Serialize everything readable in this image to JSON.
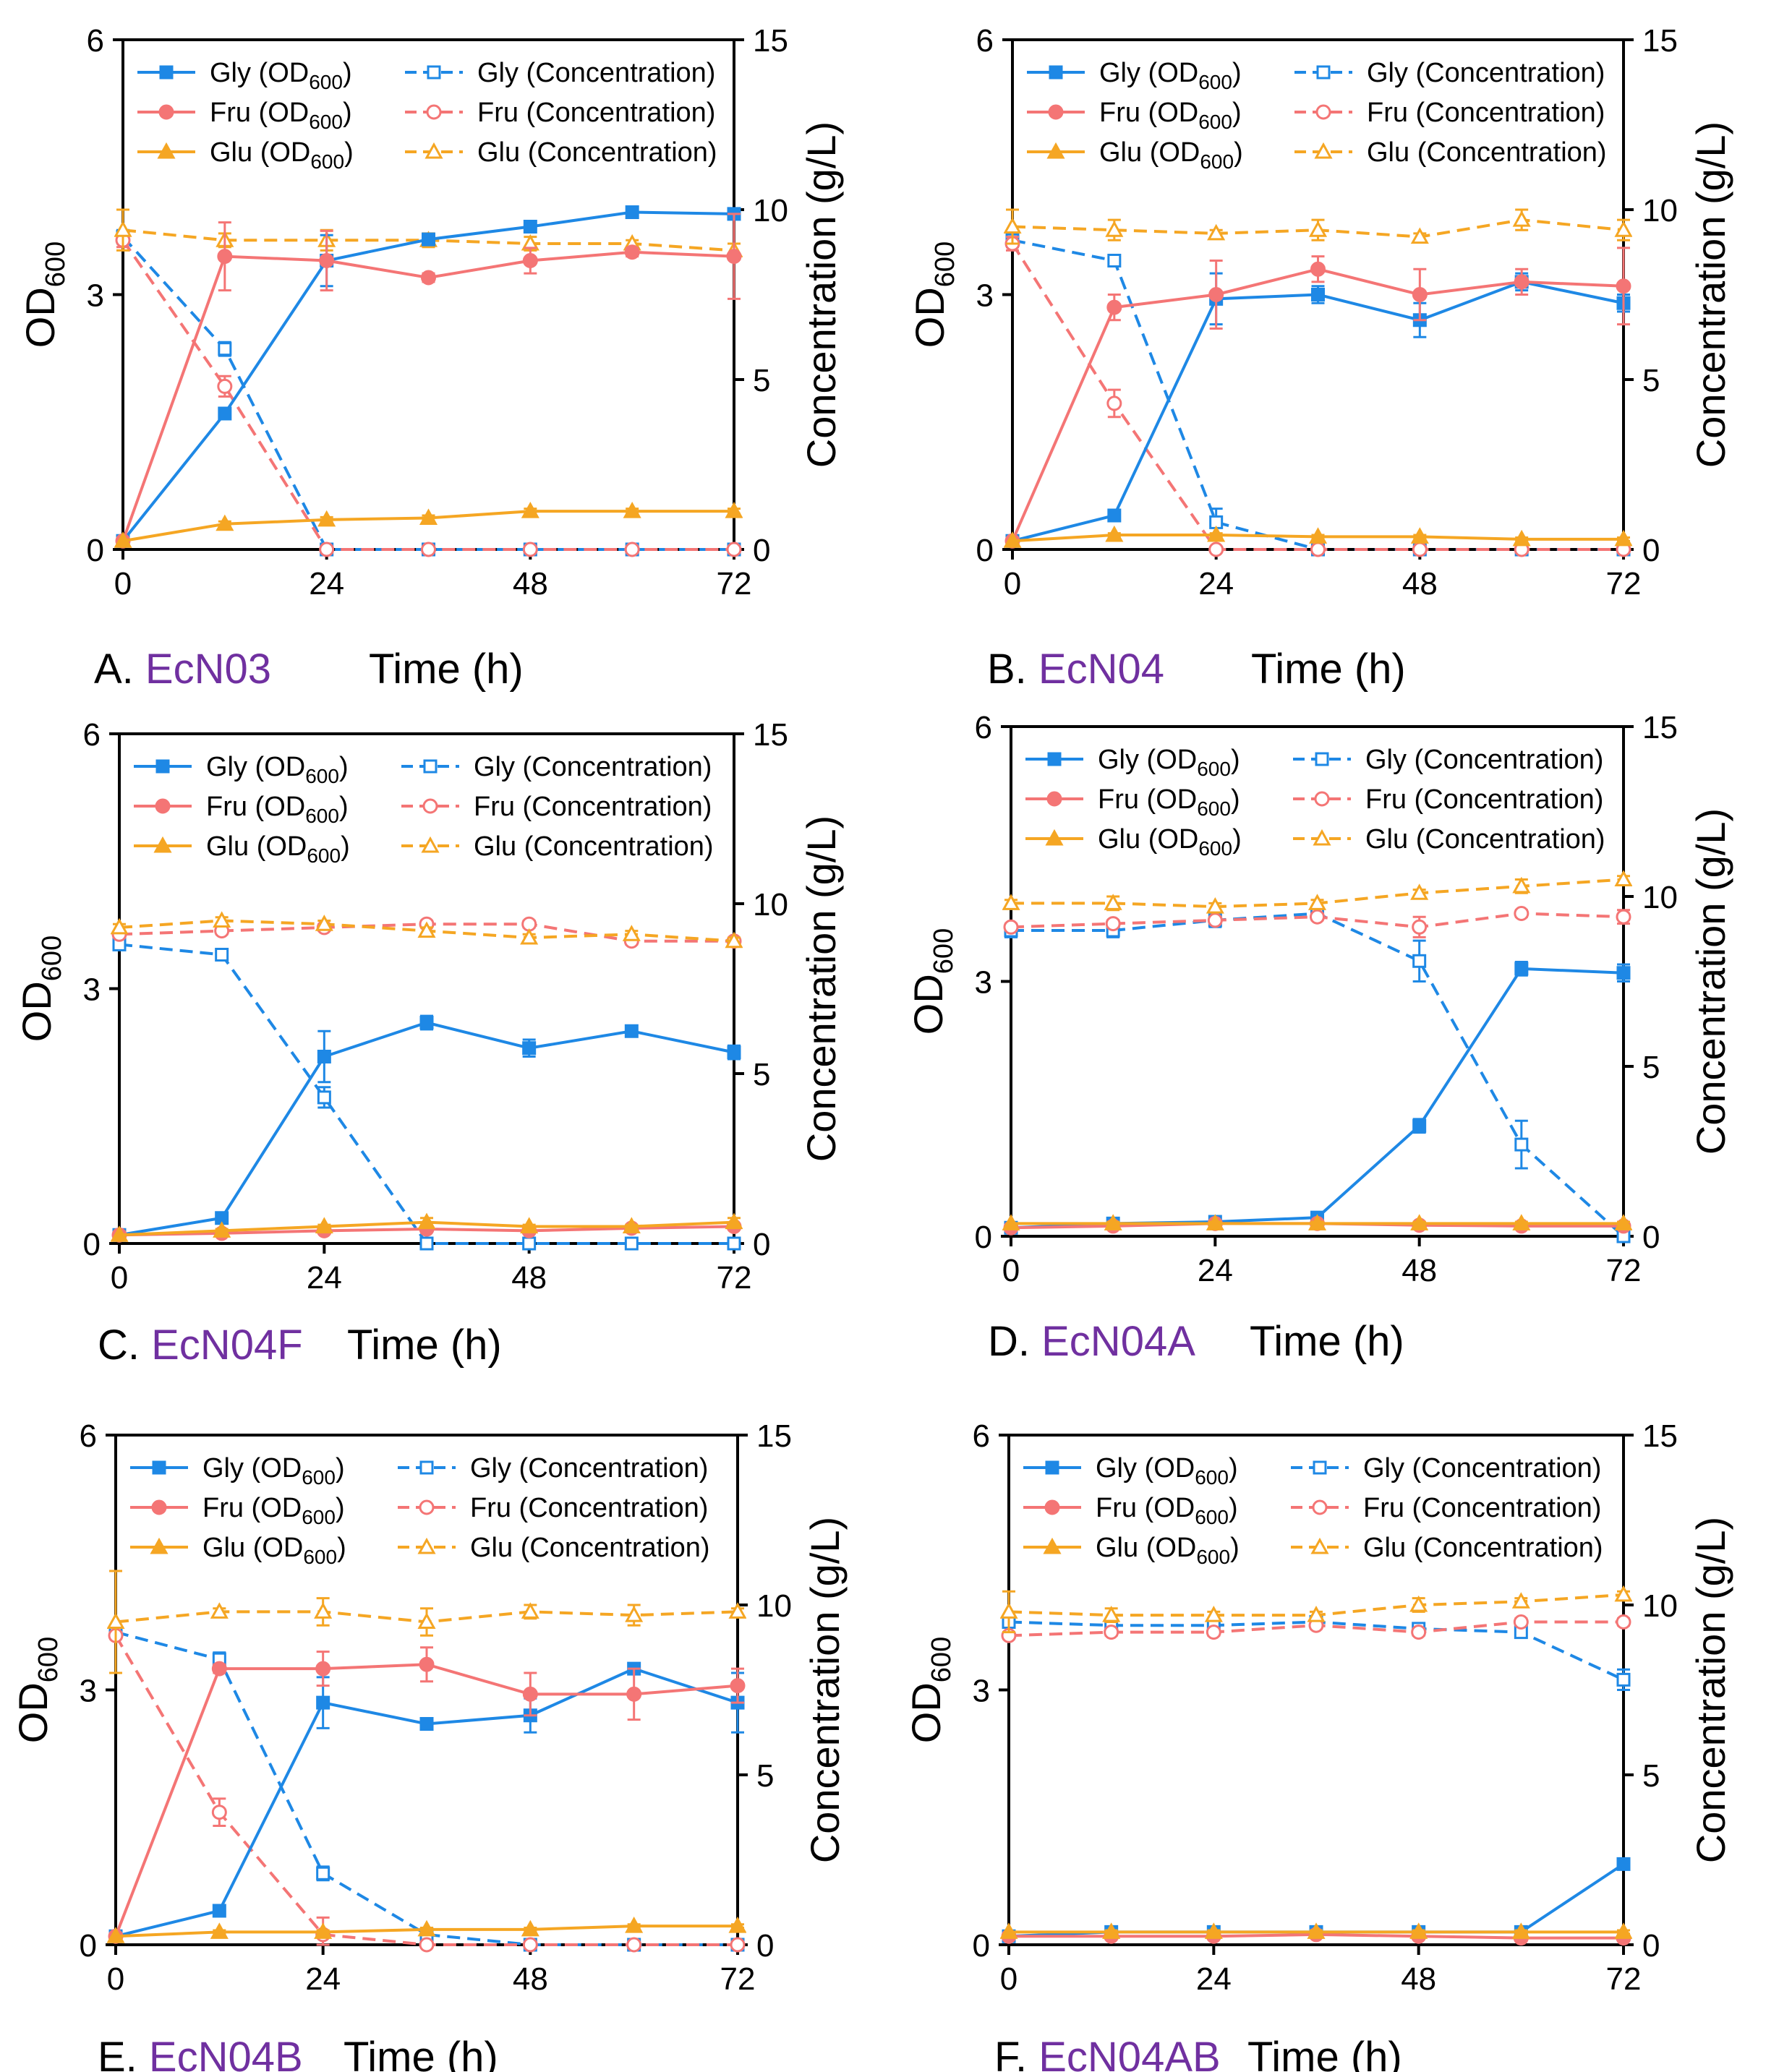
{
  "colors": {
    "gly": "#1E88E5",
    "fru": "#F47575",
    "glu": "#F5A623",
    "strain": "#7030A0",
    "axis": "#000000"
  },
  "legend_labels": {
    "gly_od": "Gly (OD",
    "fru_od": "Fru (OD",
    "glu_od": "Glu (OD",
    "od_sub": "600",
    "od_close": ")",
    "gly_conc": "Gly (Concentration)",
    "fru_conc": "Fru (Concentration)",
    "glu_conc": "Glu (Concentration)"
  },
  "chart_data": [
    {
      "type": "line",
      "panel_label": "A.",
      "strain": "EcN03",
      "xlabel": "Time (h)",
      "ylabel_left": "OD",
      "ylabel_left_sub": "600",
      "ylabel_right": "Concentration (g/L)",
      "x": [
        0,
        12,
        24,
        36,
        48,
        60,
        72
      ],
      "xlim": [
        0,
        72
      ],
      "xticks": [
        0,
        24,
        48,
        72
      ],
      "ylim_left": [
        0,
        6
      ],
      "yticks_left": [
        0,
        3,
        6
      ],
      "ylim_right": [
        0,
        15
      ],
      "yticks_right": [
        0,
        5,
        10,
        15
      ],
      "od_series": [
        {
          "name": "Gly (OD600)",
          "key": "gly",
          "values": [
            0.1,
            1.6,
            3.4,
            3.65,
            3.8,
            3.97,
            3.95
          ],
          "errors": [
            0,
            0.05,
            0.3,
            0.05,
            0.05,
            0.05,
            0.05
          ]
        },
        {
          "name": "Fru (OD600)",
          "key": "fru",
          "values": [
            0.1,
            3.45,
            3.4,
            3.2,
            3.4,
            3.5,
            3.45
          ],
          "errors": [
            0,
            0.4,
            0.35,
            0.05,
            0.15,
            0.05,
            0.5
          ]
        },
        {
          "name": "Glu (OD600)",
          "key": "glu",
          "values": [
            0.1,
            0.3,
            0.35,
            0.37,
            0.45,
            0.45,
            0.45
          ],
          "errors": [
            0,
            0.03,
            0.03,
            0.03,
            0.03,
            0.03,
            0.03
          ]
        }
      ],
      "conc_series": [
        {
          "name": "Gly (Concentration)",
          "key": "gly",
          "values": [
            9.2,
            5.9,
            0,
            0,
            0,
            0,
            0
          ],
          "errors": [
            0.2,
            0.2,
            0,
            0,
            0,
            0,
            0
          ]
        },
        {
          "name": "Fru (Concentration)",
          "key": "fru",
          "values": [
            9.1,
            4.8,
            0,
            0,
            0,
            0,
            0
          ],
          "errors": [
            0.2,
            0.3,
            0,
            0,
            0,
            0,
            0
          ]
        },
        {
          "name": "Glu (Concentration)",
          "key": "glu",
          "values": [
            9.4,
            9.1,
            9.1,
            9.1,
            9.0,
            9.0,
            8.8
          ],
          "errors": [
            0.6,
            0.2,
            0.3,
            0.2,
            0.2,
            0.1,
            0.2
          ]
        }
      ]
    },
    {
      "type": "line",
      "panel_label": "B.",
      "strain": "EcN04",
      "xlabel": "Time (h)",
      "ylabel_left": "OD",
      "ylabel_left_sub": "600",
      "ylabel_right": "Concentration (g/L)",
      "x": [
        0,
        12,
        24,
        36,
        48,
        60,
        72
      ],
      "xlim": [
        0,
        72
      ],
      "xticks": [
        0,
        24,
        48,
        72
      ],
      "ylim_left": [
        0,
        6
      ],
      "yticks_left": [
        0,
        3,
        6
      ],
      "ylim_right": [
        0,
        15
      ],
      "yticks_right": [
        0,
        5,
        10,
        15
      ],
      "od_series": [
        {
          "name": "Gly (OD600)",
          "key": "gly",
          "values": [
            0.1,
            0.4,
            2.95,
            3.0,
            2.7,
            3.15,
            2.9
          ],
          "errors": [
            0,
            0.05,
            0.3,
            0.1,
            0.2,
            0.1,
            0.1
          ]
        },
        {
          "name": "Fru (OD600)",
          "key": "fru",
          "values": [
            0.1,
            2.85,
            3.0,
            3.3,
            3.0,
            3.15,
            3.1
          ],
          "errors": [
            0,
            0.15,
            0.4,
            0.15,
            0.3,
            0.15,
            0.45
          ]
        },
        {
          "name": "Glu (OD600)",
          "key": "glu",
          "values": [
            0.1,
            0.17,
            0.17,
            0.15,
            0.15,
            0.12,
            0.12
          ],
          "errors": [
            0,
            0.02,
            0.02,
            0.02,
            0.02,
            0.02,
            0.02
          ]
        }
      ],
      "conc_series": [
        {
          "name": "Gly (Concentration)",
          "key": "gly",
          "values": [
            9.1,
            8.5,
            0.8,
            0,
            0,
            0,
            0
          ],
          "errors": [
            0.2,
            0.1,
            0.4,
            0,
            0,
            0,
            0
          ]
        },
        {
          "name": "Fru (Concentration)",
          "key": "fru",
          "values": [
            9.0,
            4.3,
            0,
            0,
            0,
            0,
            0
          ],
          "errors": [
            0.2,
            0.4,
            0,
            0,
            0,
            0,
            0
          ]
        },
        {
          "name": "Glu (Concentration)",
          "key": "glu",
          "values": [
            9.5,
            9.4,
            9.3,
            9.4,
            9.2,
            9.7,
            9.4
          ],
          "errors": [
            0.5,
            0.3,
            0.1,
            0.3,
            0.1,
            0.3,
            0.3
          ]
        }
      ]
    },
    {
      "type": "line",
      "panel_label": "C.",
      "strain": "EcN04F",
      "xlabel": "Time (h)",
      "ylabel_left": "OD",
      "ylabel_left_sub": "600",
      "ylabel_right": "Concentration (g/L)",
      "x": [
        0,
        12,
        24,
        36,
        48,
        60,
        72
      ],
      "xlim": [
        0,
        72
      ],
      "xticks": [
        0,
        24,
        48,
        72
      ],
      "ylim_left": [
        0,
        6
      ],
      "yticks_left": [
        0,
        3,
        6
      ],
      "ylim_right": [
        0,
        15
      ],
      "yticks_right": [
        0,
        5,
        10,
        15
      ],
      "od_series": [
        {
          "name": "Gly (OD600)",
          "key": "gly",
          "values": [
            0.1,
            0.3,
            2.2,
            2.6,
            2.3,
            2.5,
            2.25
          ],
          "errors": [
            0,
            0.03,
            0.3,
            0.08,
            0.1,
            0.05,
            0.08
          ]
        },
        {
          "name": "Fru (OD600)",
          "key": "fru",
          "values": [
            0.1,
            0.12,
            0.15,
            0.17,
            0.15,
            0.18,
            0.2
          ],
          "errors": [
            0,
            0.02,
            0.02,
            0.02,
            0.02,
            0.02,
            0.02
          ]
        },
        {
          "name": "Glu (OD600)",
          "key": "glu",
          "values": [
            0.1,
            0.15,
            0.2,
            0.25,
            0.2,
            0.2,
            0.25
          ],
          "errors": [
            0,
            0.02,
            0.02,
            0.05,
            0.02,
            0.02,
            0.05
          ]
        }
      ],
      "conc_series": [
        {
          "name": "Gly (Concentration)",
          "key": "gly",
          "values": [
            8.8,
            8.5,
            4.3,
            0,
            0,
            0,
            0
          ],
          "errors": [
            0.1,
            0.1,
            0.3,
            0,
            0,
            0,
            0
          ]
        },
        {
          "name": "Fru (Concentration)",
          "key": "fru",
          "values": [
            9.1,
            9.2,
            9.3,
            9.4,
            9.4,
            8.9,
            8.9
          ],
          "errors": [
            0.1,
            0.1,
            0.1,
            0.1,
            0.1,
            0.1,
            0.1
          ]
        },
        {
          "name": "Glu (Concentration)",
          "key": "glu",
          "values": [
            9.3,
            9.5,
            9.4,
            9.2,
            9.0,
            9.1,
            8.9
          ],
          "errors": [
            0.1,
            0.1,
            0.1,
            0.1,
            0.1,
            0.1,
            0.1
          ]
        }
      ]
    },
    {
      "type": "line",
      "panel_label": "D.",
      "strain": "EcN04A",
      "xlabel": "Time (h)",
      "ylabel_left": "OD",
      "ylabel_left_sub": "600",
      "ylabel_right": "Concentration (g/L)",
      "x": [
        0,
        12,
        24,
        36,
        48,
        60,
        72
      ],
      "xlim": [
        0,
        72
      ],
      "xticks": [
        0,
        24,
        48,
        72
      ],
      "ylim_left": [
        0,
        6
      ],
      "yticks_left": [
        0,
        3,
        6
      ],
      "ylim_right": [
        0,
        15
      ],
      "yticks_right": [
        0,
        5,
        10,
        15
      ],
      "od_series": [
        {
          "name": "Gly (OD600)",
          "key": "gly",
          "values": [
            0.1,
            0.15,
            0.17,
            0.22,
            1.3,
            3.15,
            3.1
          ],
          "errors": [
            0,
            0.02,
            0.02,
            0.03,
            0.08,
            0.08,
            0.1
          ]
        },
        {
          "name": "Fru (OD600)",
          "key": "fru",
          "values": [
            0.1,
            0.12,
            0.15,
            0.15,
            0.13,
            0.12,
            0.12
          ],
          "errors": [
            0,
            0.02,
            0.02,
            0.02,
            0.02,
            0.02,
            0.02
          ]
        },
        {
          "name": "Glu (OD600)",
          "key": "glu",
          "values": [
            0.15,
            0.15,
            0.15,
            0.15,
            0.15,
            0.15,
            0.15
          ],
          "errors": [
            0,
            0.02,
            0.02,
            0.02,
            0.02,
            0.02,
            0.02
          ]
        }
      ],
      "conc_series": [
        {
          "name": "Gly (Concentration)",
          "key": "gly",
          "values": [
            9.0,
            9.0,
            9.3,
            9.5,
            8.1,
            2.7,
            0
          ],
          "errors": [
            0.2,
            0.2,
            0.2,
            0.1,
            0.6,
            0.7,
            0
          ]
        },
        {
          "name": "Fru (Concentration)",
          "key": "fru",
          "values": [
            9.1,
            9.2,
            9.3,
            9.4,
            9.1,
            9.5,
            9.4
          ],
          "errors": [
            0.1,
            0.1,
            0.1,
            0.1,
            0.3,
            0.1,
            0.2
          ]
        },
        {
          "name": "Glu (Concentration)",
          "key": "glu",
          "values": [
            9.8,
            9.8,
            9.7,
            9.8,
            10.1,
            10.3,
            10.5
          ],
          "errors": [
            0.1,
            0.2,
            0.1,
            0.1,
            0.1,
            0.2,
            0.1
          ]
        }
      ]
    },
    {
      "type": "line",
      "panel_label": "E.",
      "strain": "EcN04B",
      "xlabel": "Time (h)",
      "ylabel_left": "OD",
      "ylabel_left_sub": "600",
      "ylabel_right": "Concentration (g/L)",
      "x": [
        0,
        12,
        24,
        36,
        48,
        60,
        72
      ],
      "xlim": [
        0,
        72
      ],
      "xticks": [
        0,
        24,
        48,
        72
      ],
      "ylim_left": [
        0,
        6
      ],
      "yticks_left": [
        0,
        3,
        6
      ],
      "ylim_right": [
        0,
        15
      ],
      "yticks_right": [
        0,
        5,
        10,
        15
      ],
      "od_series": [
        {
          "name": "Gly (OD600)",
          "key": "gly",
          "values": [
            0.1,
            0.4,
            2.85,
            2.6,
            2.7,
            3.25,
            2.85
          ],
          "errors": [
            0,
            0.03,
            0.3,
            0.05,
            0.2,
            0.05,
            0.35
          ]
        },
        {
          "name": "Fru (OD600)",
          "key": "fru",
          "values": [
            0.1,
            3.25,
            3.25,
            3.3,
            2.95,
            2.95,
            3.05
          ],
          "errors": [
            0,
            0.05,
            0.2,
            0.2,
            0.25,
            0.3,
            0.2
          ]
        },
        {
          "name": "Glu (OD600)",
          "key": "glu",
          "values": [
            0.1,
            0.15,
            0.15,
            0.18,
            0.18,
            0.22,
            0.22
          ],
          "errors": [
            0,
            0.02,
            0.02,
            0.02,
            0.02,
            0.02,
            0.02
          ]
        }
      ],
      "conc_series": [
        {
          "name": "Gly (Concentration)",
          "key": "gly",
          "values": [
            9.2,
            8.4,
            2.1,
            0.3,
            0,
            0,
            0
          ],
          "errors": [
            0.1,
            0.2,
            0.2,
            0.2,
            0,
            0,
            0
          ]
        },
        {
          "name": "Fru (Concentration)",
          "key": "fru",
          "values": [
            9.1,
            3.9,
            0.3,
            0,
            0,
            0,
            0
          ],
          "errors": [
            0.1,
            0.4,
            0.5,
            0,
            0,
            0,
            0
          ]
        },
        {
          "name": "Glu (Concentration)",
          "key": "glu",
          "values": [
            9.5,
            9.8,
            9.8,
            9.5,
            9.8,
            9.7,
            9.8
          ],
          "errors": [
            1.5,
            0.1,
            0.4,
            0.4,
            0.2,
            0.3,
            0.1
          ]
        }
      ]
    },
    {
      "type": "line",
      "panel_label": "F.",
      "strain": "EcN04AB",
      "xlabel": "Time (h)",
      "ylabel_left": "OD",
      "ylabel_left_sub": "600",
      "ylabel_right": "Concentration (g/L)",
      "x": [
        0,
        12,
        24,
        36,
        48,
        60,
        72
      ],
      "xlim": [
        0,
        72
      ],
      "xticks": [
        0,
        24,
        48,
        72
      ],
      "ylim_left": [
        0,
        6
      ],
      "yticks_left": [
        0,
        3,
        6
      ],
      "ylim_right": [
        0,
        15
      ],
      "yticks_right": [
        0,
        5,
        10,
        15
      ],
      "od_series": [
        {
          "name": "Gly (OD600)",
          "key": "gly",
          "values": [
            0.1,
            0.15,
            0.15,
            0.15,
            0.15,
            0.15,
            0.95
          ],
          "errors": [
            0,
            0.02,
            0.02,
            0.02,
            0.02,
            0.02,
            0.05
          ]
        },
        {
          "name": "Fru (OD600)",
          "key": "fru",
          "values": [
            0.1,
            0.1,
            0.1,
            0.12,
            0.1,
            0.08,
            0.08
          ],
          "errors": [
            0,
            0.02,
            0.02,
            0.02,
            0.02,
            0.02,
            0.02
          ]
        },
        {
          "name": "Glu (OD600)",
          "key": "glu",
          "values": [
            0.15,
            0.15,
            0.15,
            0.15,
            0.15,
            0.15,
            0.15
          ],
          "errors": [
            0,
            0.02,
            0.02,
            0.02,
            0.02,
            0.02,
            0.02
          ]
        }
      ],
      "conc_series": [
        {
          "name": "Gly (Concentration)",
          "key": "gly",
          "values": [
            9.5,
            9.4,
            9.4,
            9.5,
            9.3,
            9.2,
            7.8
          ],
          "errors": [
            0.1,
            0.1,
            0.1,
            0.1,
            0.1,
            0.1,
            0.3
          ]
        },
        {
          "name": "Fru (Concentration)",
          "key": "fru",
          "values": [
            9.1,
            9.2,
            9.2,
            9.4,
            9.2,
            9.5,
            9.5
          ],
          "errors": [
            0.1,
            0.1,
            0.1,
            0.1,
            0.1,
            0.1,
            0.1
          ]
        },
        {
          "name": "Glu (Concentration)",
          "key": "glu",
          "values": [
            9.8,
            9.7,
            9.7,
            9.7,
            10.0,
            10.1,
            10.3
          ],
          "errors": [
            0.6,
            0.2,
            0.1,
            0.1,
            0.2,
            0.1,
            0.1
          ]
        }
      ]
    }
  ]
}
